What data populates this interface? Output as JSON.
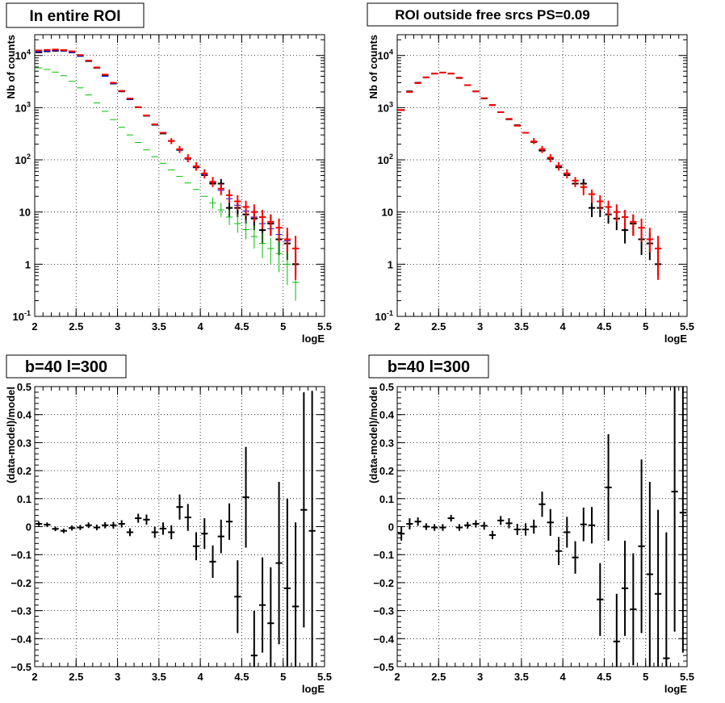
{
  "chart_data": [
    {
      "type": "scatter",
      "title": "In entire ROI",
      "xlabel": "logE",
      "ylabel": "Nb of counts",
      "xlim": [
        2,
        5.5
      ],
      "ylim": [
        0.1,
        25000
      ],
      "yscale": "log",
      "grid": true,
      "x_ticks": [
        "2",
        "2.5",
        "3",
        "3.5",
        "4",
        "4.5",
        "5",
        "5.5"
      ],
      "y_ticks": [
        {
          "base": "10",
          "exp": "-1",
          "text": "",
          "value": 0.1
        },
        {
          "base": "",
          "exp": "",
          "text": "1",
          "value": 1
        },
        {
          "base": "",
          "exp": "",
          "text": "10",
          "value": 10
        },
        {
          "base": "10",
          "exp": "2",
          "text": "",
          "value": 100
        },
        {
          "base": "10",
          "exp": "3",
          "text": "",
          "value": 1000
        },
        {
          "base": "10",
          "exp": "4",
          "text": "",
          "value": 10000
        }
      ],
      "series": [
        {
          "color": "#000000",
          "values": [
            11500,
            12000,
            12300,
            12300,
            11500,
            9800,
            7800,
            5800,
            4100,
            2900,
            2050,
            1450,
            1020,
            700,
            470,
            320,
            230,
            155,
            105,
            72,
            51,
            35,
            35,
            12,
            12,
            9,
            7.5,
            4.5,
            6,
            3,
            2.5,
            1
          ],
          "errors": [
            null,
            null,
            null,
            null,
            null,
            null,
            null,
            null,
            null,
            null,
            null,
            null,
            null,
            null,
            null,
            null,
            null,
            null,
            null,
            null,
            null,
            null,
            [
              27,
              43
            ],
            [
              8,
              17
            ],
            [
              8,
              17
            ],
            [
              6,
              13
            ],
            [
              4.5,
              11
            ],
            [
              2.5,
              7
            ],
            [
              3.5,
              9
            ],
            [
              1.5,
              5
            ],
            [
              1.2,
              4
            ],
            [
              0.6,
              2.2
            ]
          ]
        },
        {
          "color": "#0000ff",
          "values": [
            11800,
            12000,
            12500,
            12300,
            11500,
            9700,
            7800,
            5800,
            4000,
            2900,
            2050,
            1450,
            1000,
            700,
            470,
            330,
            230,
            155,
            105,
            73,
            52,
            37,
            26,
            18,
            13.5,
            10.5,
            8,
            6,
            4.8,
            3.7,
            2.8,
            2
          ],
          "errors": null
        },
        {
          "color": "#00c000",
          "values": [
            5800,
            5400,
            4800,
            4100,
            3200,
            2400,
            1750,
            1230,
            850,
            590,
            420,
            300,
            215,
            155,
            115,
            86,
            64,
            48,
            36,
            27,
            20,
            15,
            11,
            8,
            6,
            4.6,
            3.4,
            2.5,
            2,
            1.6,
            1,
            0.45
          ],
          "errors": [
            null,
            null,
            null,
            null,
            null,
            null,
            null,
            null,
            null,
            null,
            null,
            null,
            null,
            null,
            null,
            null,
            null,
            null,
            null,
            null,
            null,
            [
              11.5,
              19
            ],
            [
              8,
              15
            ],
            [
              5.6,
              11
            ],
            [
              4,
              9
            ],
            [
              3,
              7
            ],
            [
              2,
              5.5
            ],
            [
              1.3,
              4
            ],
            [
              1,
              3.2
            ],
            [
              0.7,
              2.7
            ],
            [
              0.4,
              2
            ],
            [
              0.2,
              0.9
            ]
          ]
        },
        {
          "color": "#ff0000",
          "values": [
            12500,
            12800,
            13000,
            12700,
            12000,
            10200,
            8000,
            5900,
            4300,
            3000,
            2100,
            1500,
            1020,
            710,
            480,
            330,
            230,
            160,
            108,
            75,
            55,
            38,
            28,
            21,
            16,
            12.5,
            10,
            8,
            6.5,
            5,
            3,
            2
          ],
          "errors": [
            null,
            null,
            null,
            null,
            null,
            null,
            null,
            null,
            null,
            null,
            null,
            null,
            null,
            null,
            null,
            null,
            [
              200,
              260
            ],
            [
              135,
              185
            ],
            [
              90,
              128
            ],
            [
              62,
              90
            ],
            [
              44,
              66
            ],
            [
              30,
              47
            ],
            [
              21,
              35
            ],
            [
              15,
              27
            ],
            [
              11,
              21
            ],
            [
              8.5,
              16.5
            ],
            [
              6.5,
              14
            ],
            [
              4.8,
              11
            ],
            [
              3.5,
              9
            ],
            [
              2.7,
              7.5
            ],
            [
              1.7,
              5
            ],
            [
              0.5,
              3.5
            ]
          ]
        }
      ]
    },
    {
      "type": "scatter",
      "title": "ROI outside free srcs PS=0.09",
      "xlabel": "logE",
      "ylabel": "Nb of counts",
      "xlim": [
        2,
        5.5
      ],
      "ylim": [
        0.1,
        25000
      ],
      "yscale": "log",
      "grid": true,
      "x_ticks": [
        "2",
        "2.5",
        "3",
        "3.5",
        "4",
        "4.5",
        "5",
        "5.5"
      ],
      "y_ticks": [
        {
          "base": "10",
          "exp": "-1",
          "text": "",
          "value": 0.1
        },
        {
          "base": "",
          "exp": "",
          "text": "1",
          "value": 1
        },
        {
          "base": "",
          "exp": "",
          "text": "10",
          "value": 10
        },
        {
          "base": "10",
          "exp": "2",
          "text": "",
          "value": 100
        },
        {
          "base": "10",
          "exp": "3",
          "text": "",
          "value": 1000
        },
        {
          "base": "10",
          "exp": "4",
          "text": "",
          "value": 10000
        }
      ],
      "series": [
        {
          "color": "#000000",
          "values": [
            900,
            2050,
            3000,
            3800,
            4500,
            4700,
            4500,
            3700,
            2700,
            2050,
            1500,
            1120,
            820,
            600,
            460,
            330,
            220,
            150,
            105,
            72,
            51,
            35,
            35,
            12,
            12,
            9,
            7.5,
            4.5,
            6,
            3,
            2.5,
            1
          ],
          "errors": [
            null,
            null,
            null,
            null,
            null,
            null,
            null,
            null,
            null,
            null,
            null,
            null,
            null,
            null,
            null,
            null,
            null,
            null,
            null,
            null,
            null,
            null,
            [
              27,
              43
            ],
            [
              8,
              17
            ],
            [
              8,
              17
            ],
            [
              6,
              13
            ],
            [
              4.5,
              11
            ],
            [
              2.5,
              7
            ],
            [
              3.5,
              9
            ],
            [
              1.5,
              5
            ],
            [
              1.2,
              4
            ],
            [
              0.6,
              2.2
            ]
          ]
        },
        {
          "color": "#ff0000",
          "values": [
            900,
            2000,
            2950,
            3800,
            4500,
            4700,
            4500,
            3750,
            2700,
            2050,
            1520,
            1120,
            820,
            610,
            450,
            330,
            225,
            160,
            110,
            77,
            55,
            40,
            30,
            22,
            16,
            12.5,
            10,
            8,
            6.5,
            5,
            3,
            2
          ],
          "errors": [
            null,
            null,
            null,
            null,
            null,
            null,
            null,
            null,
            null,
            null,
            null,
            null,
            null,
            null,
            null,
            null,
            [
              200,
              260
            ],
            [
              135,
              185
            ],
            [
              90,
              128
            ],
            [
              62,
              90
            ],
            [
              44,
              66
            ],
            [
              30,
              47
            ],
            [
              21,
              35
            ],
            [
              15,
              27
            ],
            [
              11,
              21
            ],
            [
              8.5,
              16.5
            ],
            [
              6.5,
              14
            ],
            [
              4.8,
              11
            ],
            [
              3.5,
              9
            ],
            [
              2.7,
              7.5
            ],
            [
              1.7,
              5
            ],
            [
              0.5,
              3.5
            ]
          ]
        }
      ]
    },
    {
      "type": "scatter",
      "title": "b=40 l=300",
      "xlabel": "logE",
      "ylabel": "(data-model)/model",
      "xlim": [
        2,
        5.5
      ],
      "ylim": [
        -0.5,
        0.5
      ],
      "grid": true,
      "x_ticks": [
        "2",
        "2.5",
        "3",
        "3.5",
        "4",
        "4.5",
        "5",
        "5.5"
      ],
      "y_ticks": [
        "−0.5",
        "−0.4",
        "−0.3",
        "−0.2",
        "−0.1",
        "0",
        "0.1",
        "0.2",
        "0.3",
        "0.4",
        "0.5"
      ],
      "series": [
        {
          "color": "#000000",
          "values": [
            0.01,
            0.007,
            -0.008,
            -0.015,
            -0.005,
            -0.003,
            0.005,
            -0.003,
            0.005,
            0.005,
            0.01,
            -0.02,
            0.03,
            0.025,
            -0.02,
            -0.007,
            -0.02,
            0.07,
            0.033,
            -0.07,
            -0.025,
            -0.125,
            -0.035,
            0.018,
            -0.25,
            0.105,
            -0.46,
            -0.28,
            -0.345,
            -0.13,
            -0.22,
            -0.285,
            0.06,
            -0.015
          ],
          "errors": [
            0.008,
            0.008,
            0.008,
            0.008,
            0.009,
            0.009,
            0.01,
            0.01,
            0.011,
            0.012,
            0.013,
            0.014,
            0.016,
            0.018,
            0.02,
            0.022,
            0.025,
            0.045,
            0.048,
            0.05,
            0.055,
            0.058,
            0.06,
            0.065,
            0.13,
            0.18,
            0.16,
            0.17,
            0.2,
            0.29,
            0.32,
            0.3,
            0.42,
            0.5
          ]
        }
      ]
    },
    {
      "type": "scatter",
      "title": "b=40 l=300",
      "xlabel": "logE",
      "ylabel": "(data-model)/model",
      "xlim": [
        2,
        5.5
      ],
      "ylim": [
        -0.5,
        0.5
      ],
      "grid": true,
      "x_ticks": [
        "2",
        "2.5",
        "3",
        "3.5",
        "4",
        "4.5",
        "5",
        "5.5"
      ],
      "y_ticks": [
        "−0.5",
        "−0.4",
        "−0.3",
        "−0.2",
        "−0.1",
        "0",
        "0.1",
        "0.2",
        "0.3",
        "0.4",
        "0.5"
      ],
      "series": [
        {
          "color": "#000000",
          "values": [
            -0.025,
            0.01,
            0.018,
            0,
            -0.003,
            -0.003,
            0.03,
            -0.003,
            0.005,
            0.01,
            0.003,
            -0.03,
            0.022,
            0.012,
            -0.01,
            -0.01,
            0,
            0.08,
            0.015,
            -0.087,
            -0.02,
            -0.11,
            0.008,
            0.005,
            -0.26,
            0.14,
            -0.41,
            -0.22,
            -0.295,
            -0.07,
            -0.17,
            -0.24,
            -0.47,
            0.125,
            0.05
          ],
          "errors": [
            0.025,
            0.02,
            0.015,
            0.012,
            0.012,
            0.012,
            0.012,
            0.012,
            0.012,
            0.013,
            0.014,
            0.015,
            0.016,
            0.018,
            0.02,
            0.022,
            0.025,
            0.045,
            0.048,
            0.05,
            0.055,
            0.058,
            0.06,
            0.065,
            0.13,
            0.19,
            0.17,
            0.17,
            0.2,
            0.31,
            0.33,
            0.3,
            0.45,
            0.5,
            0.5
          ]
        }
      ]
    }
  ]
}
